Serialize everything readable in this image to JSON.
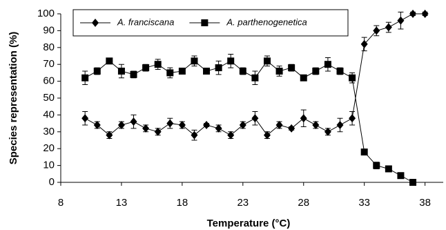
{
  "chart_data": {
    "type": "line",
    "xlabel": "Temperature (°C)",
    "ylabel": "Species representation (%)",
    "x": [
      10,
      11,
      12,
      13,
      14,
      15,
      16,
      17,
      18,
      19,
      20,
      21,
      22,
      23,
      24,
      25,
      26,
      27,
      28,
      29,
      30,
      31,
      32,
      33,
      34,
      35,
      36,
      37,
      38
    ],
    "series": [
      {
        "name": "A. franciscana",
        "color": "#000000",
        "marker": "diamond",
        "values": [
          38,
          34,
          28,
          34,
          36,
          32,
          30,
          35,
          34,
          28,
          34,
          32,
          28,
          34,
          38,
          28,
          34,
          32,
          38,
          34,
          30,
          34,
          38,
          82,
          90,
          92,
          96,
          100,
          100
        ],
        "errors": [
          4,
          2,
          2,
          2,
          4,
          2,
          2,
          3,
          2,
          3,
          1,
          2,
          2,
          2,
          4,
          2,
          2,
          1,
          5,
          2,
          2,
          4,
          4,
          4,
          3,
          3,
          5,
          1,
          1
        ]
      },
      {
        "name": "A. parthenogenetica",
        "color": "#000000",
        "marker": "square",
        "values": [
          62,
          66,
          72,
          66,
          64,
          68,
          70,
          65,
          66,
          72,
          66,
          68,
          72,
          66,
          62,
          72,
          66,
          68,
          62,
          66,
          70,
          66,
          62,
          18,
          10,
          8,
          4,
          0,
          null
        ],
        "errors": [
          4,
          2,
          1,
          4,
          2,
          2,
          3,
          3,
          1,
          3,
          1,
          4,
          4,
          2,
          4,
          3,
          3,
          2,
          1,
          2,
          4,
          2,
          3,
          1,
          2,
          1,
          1,
          1,
          null
        ]
      }
    ],
    "xlim": [
      8,
      39.5
    ],
    "xticks": [
      8,
      13,
      18,
      23,
      28,
      33,
      38
    ],
    "ylim": [
      0,
      100
    ],
    "yticks": [
      0,
      10,
      20,
      30,
      40,
      50,
      60,
      70,
      80,
      90,
      100
    ],
    "legend": "upper left"
  }
}
